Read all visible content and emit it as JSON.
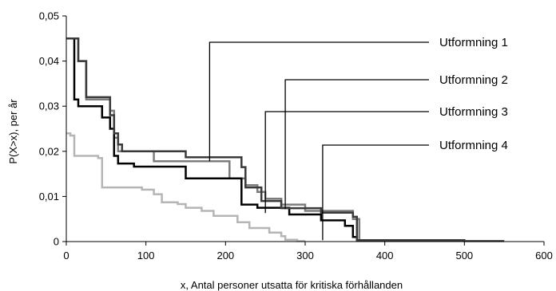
{
  "chart_data": {
    "type": "line",
    "xlabel": "x, Antal personer utsatta för kritiska förhållanden",
    "ylabel": "P(X>x), per år",
    "xlim": [
      0,
      600
    ],
    "ylim": [
      0,
      0.05
    ],
    "x_ticks": [
      "0",
      "100",
      "200",
      "300",
      "400",
      "500",
      "600"
    ],
    "y_ticks": [
      "0",
      "0,01",
      "0,02",
      "0,03",
      "0,04",
      "0,05"
    ],
    "grid": false,
    "line_style": "step",
    "series": [
      {
        "name": "Utformning 1",
        "color": "#3a3a3a",
        "label_anchor": [
          180,
          0.0178
        ],
        "points": [
          [
            0,
            0.045
          ],
          [
            15,
            0.045
          ],
          [
            15,
            0.04
          ],
          [
            25,
            0.04
          ],
          [
            25,
            0.032
          ],
          [
            55,
            0.032
          ],
          [
            55,
            0.028
          ],
          [
            60,
            0.028
          ],
          [
            60,
            0.024
          ],
          [
            65,
            0.024
          ],
          [
            65,
            0.0215
          ],
          [
            70,
            0.0215
          ],
          [
            70,
            0.02
          ],
          [
            150,
            0.02
          ],
          [
            150,
            0.0187
          ],
          [
            220,
            0.0187
          ],
          [
            220,
            0.0165
          ],
          [
            225,
            0.0165
          ],
          [
            225,
            0.012
          ],
          [
            245,
            0.012
          ],
          [
            245,
            0.009
          ],
          [
            270,
            0.009
          ],
          [
            270,
            0.0074
          ],
          [
            320,
            0.0074
          ],
          [
            320,
            0.0064
          ],
          [
            360,
            0.0064
          ],
          [
            360,
            0.0055
          ],
          [
            365,
            0.0055
          ],
          [
            365,
            0.0003
          ],
          [
            500,
            0.0003
          ],
          [
            500,
            0.0001
          ],
          [
            550,
            0.0001
          ]
        ]
      },
      {
        "name": "Utformning 2",
        "color": "#7c7c7c",
        "label_anchor": [
          275,
          0.0072
        ],
        "points": [
          [
            0,
            0.045
          ],
          [
            15,
            0.045
          ],
          [
            15,
            0.04
          ],
          [
            25,
            0.04
          ],
          [
            25,
            0.0315
          ],
          [
            55,
            0.0315
          ],
          [
            55,
            0.029
          ],
          [
            60,
            0.029
          ],
          [
            60,
            0.023
          ],
          [
            65,
            0.023
          ],
          [
            65,
            0.02
          ],
          [
            110,
            0.02
          ],
          [
            110,
            0.0178
          ],
          [
            205,
            0.0178
          ],
          [
            205,
            0.014
          ],
          [
            225,
            0.014
          ],
          [
            225,
            0.0125
          ],
          [
            240,
            0.0125
          ],
          [
            240,
            0.011
          ],
          [
            250,
            0.011
          ],
          [
            250,
            0.0095
          ],
          [
            270,
            0.0095
          ],
          [
            270,
            0.0082
          ],
          [
            300,
            0.0082
          ],
          [
            300,
            0.0068
          ],
          [
            360,
            0.0068
          ],
          [
            360,
            0.005
          ],
          [
            368,
            0.005
          ],
          [
            368,
            0.0003
          ],
          [
            460,
            0.0003
          ]
        ]
      },
      {
        "name": "Utformning 3",
        "color": "#000000",
        "label_anchor": [
          250,
          0.0063
        ],
        "points": [
          [
            0,
            0.045
          ],
          [
            10,
            0.045
          ],
          [
            10,
            0.0315
          ],
          [
            15,
            0.0315
          ],
          [
            15,
            0.03
          ],
          [
            45,
            0.03
          ],
          [
            45,
            0.0275
          ],
          [
            55,
            0.0275
          ],
          [
            55,
            0.025
          ],
          [
            60,
            0.025
          ],
          [
            60,
            0.019
          ],
          [
            65,
            0.019
          ],
          [
            65,
            0.0173
          ],
          [
            85,
            0.0173
          ],
          [
            85,
            0.0166
          ],
          [
            150,
            0.0166
          ],
          [
            150,
            0.014
          ],
          [
            220,
            0.014
          ],
          [
            220,
            0.0082
          ],
          [
            240,
            0.0082
          ],
          [
            240,
            0.0075
          ],
          [
            280,
            0.0075
          ],
          [
            280,
            0.006
          ],
          [
            320,
            0.006
          ],
          [
            320,
            0.0047
          ],
          [
            350,
            0.0047
          ],
          [
            350,
            0.0035
          ],
          [
            360,
            0.0035
          ],
          [
            360,
            0.001
          ],
          [
            365,
            0.001
          ],
          [
            365,
            0.0003
          ],
          [
            420,
            0.0003
          ]
        ]
      },
      {
        "name": "Utformning 4",
        "color": "#b5b5b5",
        "label_anchor": [
          322,
          0.0003
        ],
        "points": [
          [
            0,
            0.024
          ],
          [
            5,
            0.024
          ],
          [
            5,
            0.0235
          ],
          [
            10,
            0.0235
          ],
          [
            10,
            0.019
          ],
          [
            40,
            0.019
          ],
          [
            40,
            0.0185
          ],
          [
            45,
            0.0185
          ],
          [
            45,
            0.012
          ],
          [
            95,
            0.012
          ],
          [
            95,
            0.0115
          ],
          [
            110,
            0.0115
          ],
          [
            110,
            0.0105
          ],
          [
            120,
            0.0105
          ],
          [
            120,
            0.0087
          ],
          [
            140,
            0.0087
          ],
          [
            140,
            0.0083
          ],
          [
            150,
            0.0083
          ],
          [
            150,
            0.0075
          ],
          [
            170,
            0.0075
          ],
          [
            170,
            0.0068
          ],
          [
            185,
            0.0068
          ],
          [
            185,
            0.0057
          ],
          [
            215,
            0.0057
          ],
          [
            215,
            0.0043
          ],
          [
            230,
            0.0043
          ],
          [
            230,
            0.003
          ],
          [
            255,
            0.003
          ],
          [
            255,
            0.002
          ],
          [
            270,
            0.002
          ],
          [
            270,
            0.0012
          ],
          [
            275,
            0.0012
          ],
          [
            275,
            0.0004
          ],
          [
            290,
            0.0004
          ],
          [
            290,
            0.0001
          ],
          [
            300,
            0.0001
          ]
        ]
      }
    ]
  }
}
